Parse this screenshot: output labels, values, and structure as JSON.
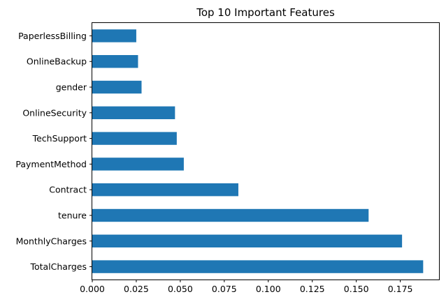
{
  "chart_data": {
    "type": "bar",
    "orientation": "horizontal",
    "title": "Top 10 Important Features",
    "xlabel": "",
    "ylabel": "",
    "categories": [
      "TotalCharges",
      "MonthlyCharges",
      "tenure",
      "Contract",
      "PaymentMethod",
      "TechSupport",
      "OnlineSecurity",
      "gender",
      "OnlineBackup",
      "PaperlessBilling"
    ],
    "values": [
      0.188,
      0.176,
      0.157,
      0.083,
      0.052,
      0.048,
      0.047,
      0.028,
      0.026,
      0.025
    ],
    "xlim": [
      0,
      0.197
    ],
    "xticks": [
      0,
      0.025,
      0.05,
      0.075,
      0.1,
      0.125,
      0.15,
      0.175
    ],
    "xtick_labels": [
      "0.000",
      "0.025",
      "0.050",
      "0.075",
      "0.100",
      "0.125",
      "0.150",
      "0.175"
    ],
    "bar_color": "#1f77b4",
    "grid": false,
    "legend": "none"
  }
}
